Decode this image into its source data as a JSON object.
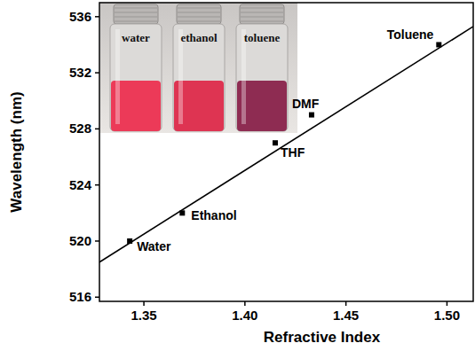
{
  "chart_data": {
    "type": "scatter",
    "x_label": "Refractive Index",
    "y_label": "Wavelength (nm)",
    "xlim": [
      1.328,
      1.513
    ],
    "ylim": [
      515.7,
      537.0
    ],
    "xticks": [
      1.35,
      {
        "value": 1.4,
        "label": "1.40"
      },
      1.45,
      {
        "value": 1.5,
        "label": "1.50"
      }
    ],
    "yticks": [
      516,
      520,
      524,
      528,
      532,
      536
    ],
    "grid": false,
    "series": [
      {
        "type": "scatter",
        "marker": "square",
        "color": "#000000",
        "x": [
          1.343,
          1.369,
          1.415,
          1.433,
          1.496
        ],
        "values": [
          520,
          522,
          527,
          529,
          534
        ],
        "labels": [
          "Water",
          "Ethanol",
          "THF",
          "DMF",
          "Toluene"
        ]
      },
      {
        "type": "line",
        "line_style": "solid",
        "color": "#000000",
        "x": [
          1.328,
          1.513
        ],
        "values": [
          518.5,
          535.3
        ]
      }
    ],
    "annotations": [
      "water",
      "ethanol",
      "toluene"
    ]
  }
}
